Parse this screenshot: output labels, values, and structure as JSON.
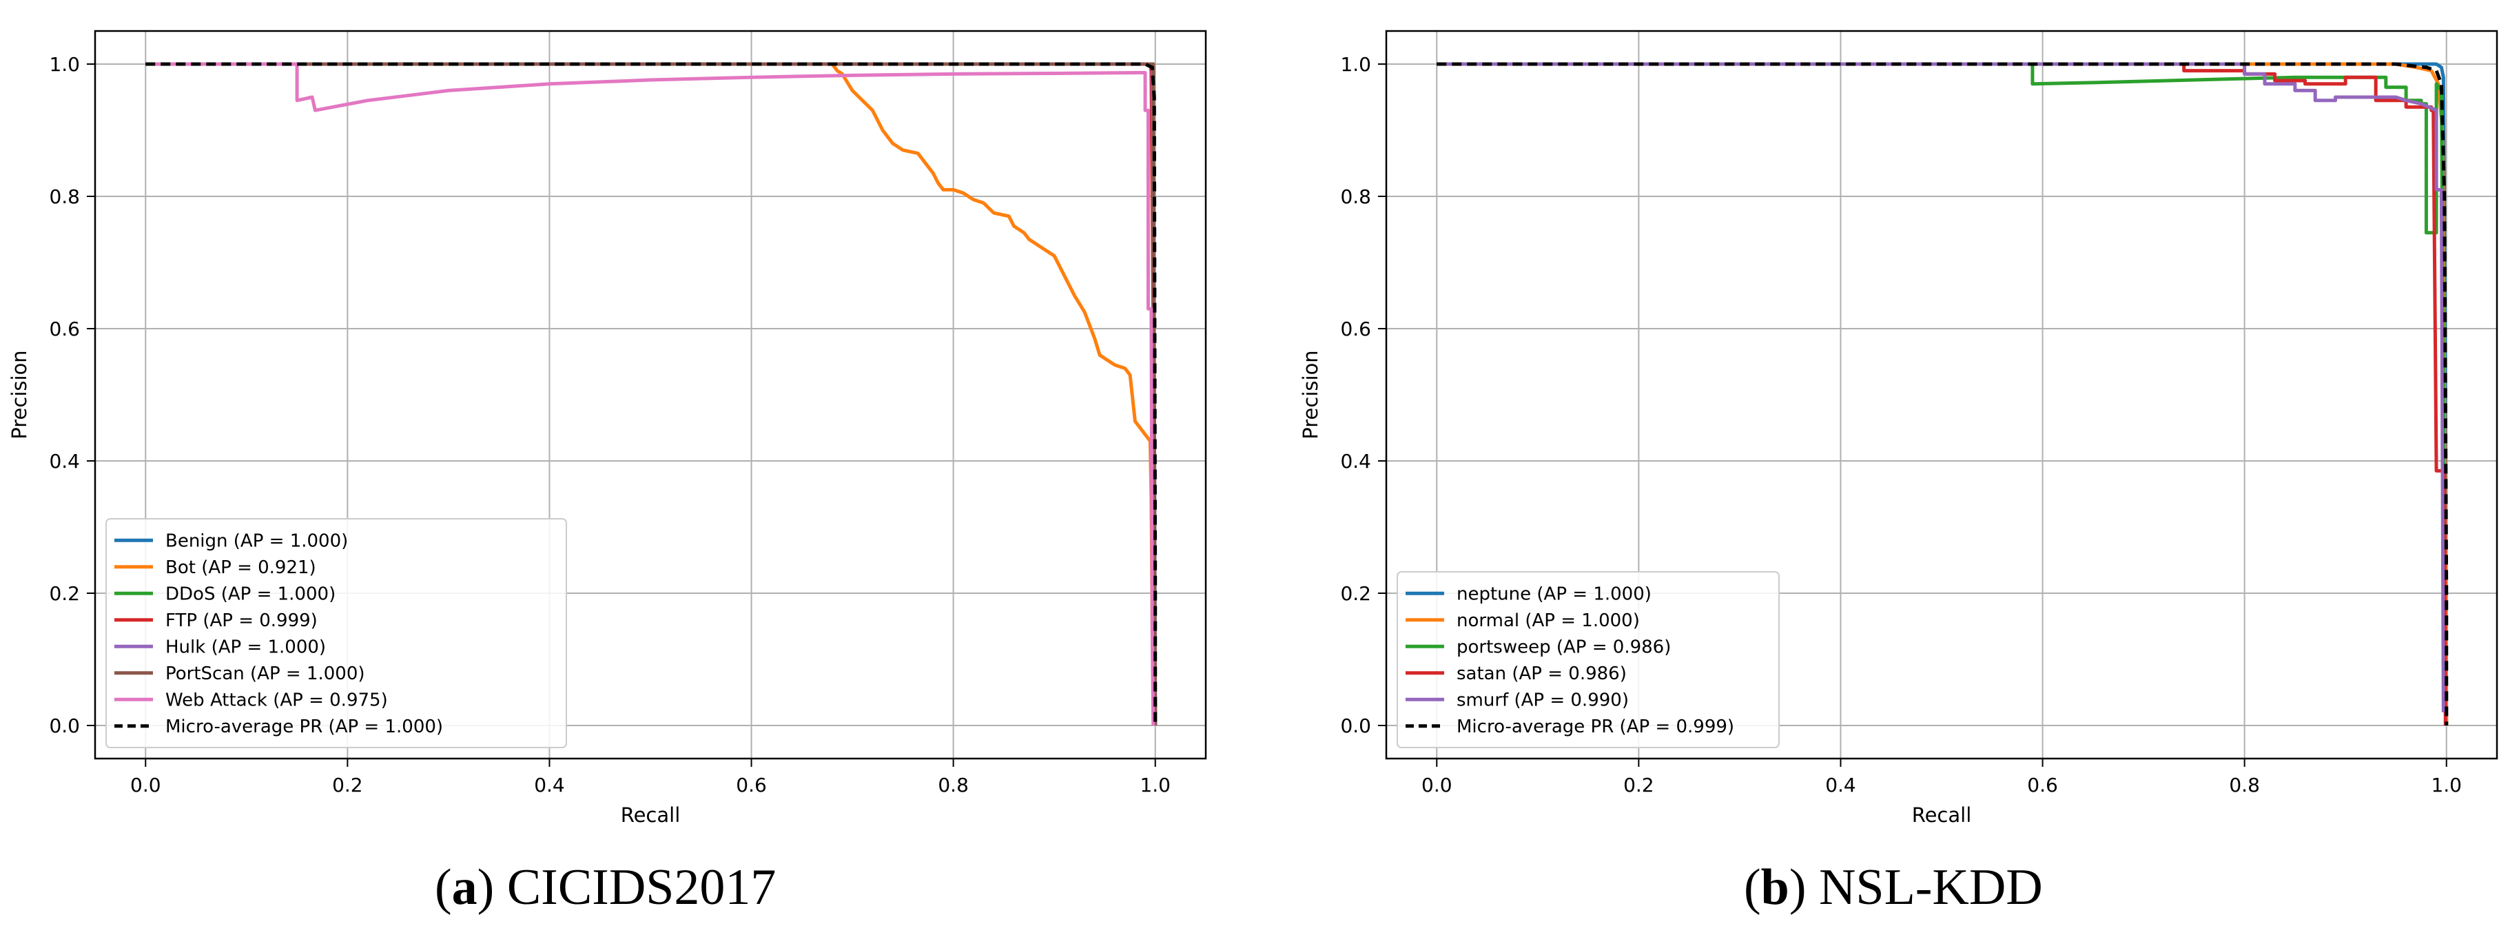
{
  "chart_data": [
    {
      "type": "line",
      "caption": {
        "letter": "a",
        "text": "CICIDS2017"
      },
      "xlabel": "Recall",
      "ylabel": "Precision",
      "xlim": [
        -0.05,
        1.05
      ],
      "ylim": [
        -0.05,
        1.05
      ],
      "xticks": [
        "0.0",
        "0.2",
        "0.4",
        "0.6",
        "0.8",
        "1.0"
      ],
      "yticks": [
        "0.0",
        "0.2",
        "0.4",
        "0.6",
        "0.8",
        "1.0"
      ],
      "grid": true,
      "legend_position": "lower-left",
      "series": [
        {
          "name": "Benign (AP = 1.000)",
          "color": "#1f77b4",
          "dash": false,
          "points": [
            [
              0,
              1
            ],
            [
              0.997,
              1
            ],
            [
              0.998,
              0.99
            ],
            [
              0.999,
              0.5
            ],
            [
              1,
              0
            ]
          ]
        },
        {
          "name": "Bot (AP = 0.921)",
          "color": "#ff7f0e",
          "dash": false,
          "points": [
            [
              0,
              1
            ],
            [
              0.68,
              1
            ],
            [
              0.685,
              0.99
            ],
            [
              0.69,
              0.985
            ],
            [
              0.7,
              0.96
            ],
            [
              0.71,
              0.945
            ],
            [
              0.72,
              0.93
            ],
            [
              0.73,
              0.9
            ],
            [
              0.74,
              0.88
            ],
            [
              0.75,
              0.87
            ],
            [
              0.765,
              0.865
            ],
            [
              0.775,
              0.845
            ],
            [
              0.78,
              0.835
            ],
            [
              0.785,
              0.82
            ],
            [
              0.79,
              0.81
            ],
            [
              0.8,
              0.81
            ],
            [
              0.81,
              0.805
            ],
            [
              0.82,
              0.795
            ],
            [
              0.83,
              0.79
            ],
            [
              0.84,
              0.775
            ],
            [
              0.855,
              0.77
            ],
            [
              0.86,
              0.755
            ],
            [
              0.87,
              0.745
            ],
            [
              0.875,
              0.735
            ],
            [
              0.88,
              0.73
            ],
            [
              0.89,
              0.72
            ],
            [
              0.9,
              0.71
            ],
            [
              0.91,
              0.68
            ],
            [
              0.92,
              0.65
            ],
            [
              0.93,
              0.625
            ],
            [
              0.94,
              0.585
            ],
            [
              0.945,
              0.56
            ],
            [
              0.95,
              0.555
            ],
            [
              0.96,
              0.545
            ],
            [
              0.97,
              0.54
            ],
            [
              0.975,
              0.53
            ],
            [
              0.98,
              0.46
            ],
            [
              0.99,
              0.44
            ],
            [
              0.995,
              0.43
            ],
            [
              0.996,
              0.35
            ],
            [
              0.997,
              0.15
            ],
            [
              0.998,
              0.04
            ]
          ]
        },
        {
          "name": "DDoS (AP = 1.000)",
          "color": "#2ca02c",
          "dash": false,
          "points": [
            [
              0,
              1
            ],
            [
              0.998,
              1
            ],
            [
              0.999,
              0.3
            ],
            [
              1,
              0
            ]
          ]
        },
        {
          "name": "FTP (AP = 0.999)",
          "color": "#d62728",
          "dash": false,
          "points": [
            [
              0,
              1
            ],
            [
              0.995,
              1
            ],
            [
              0.996,
              0.99
            ],
            [
              0.998,
              0.6
            ],
            [
              1,
              0
            ]
          ]
        },
        {
          "name": "Hulk (AP = 1.000)",
          "color": "#9467bd",
          "dash": false,
          "points": [
            [
              0,
              1
            ],
            [
              0.997,
              1
            ],
            [
              0.999,
              0.5
            ],
            [
              1,
              0
            ]
          ]
        },
        {
          "name": "PortScan (AP = 1.000)",
          "color": "#8c564b",
          "dash": false,
          "points": [
            [
              0,
              1
            ],
            [
              0.998,
              1
            ],
            [
              0.999,
              0.4
            ],
            [
              1,
              0
            ]
          ]
        },
        {
          "name": "Web Attack (AP = 0.975)",
          "color": "#e377c2",
          "dash": false,
          "points": [
            [
              0,
              1
            ],
            [
              0.15,
              1
            ],
            [
              0.15,
              0.945
            ],
            [
              0.165,
              0.95
            ],
            [
              0.168,
              0.93
            ],
            [
              0.22,
              0.945
            ],
            [
              0.3,
              0.96
            ],
            [
              0.4,
              0.97
            ],
            [
              0.5,
              0.976
            ],
            [
              0.6,
              0.98
            ],
            [
              0.7,
              0.983
            ],
            [
              0.8,
              0.985
            ],
            [
              0.9,
              0.986
            ],
            [
              0.99,
              0.987
            ],
            [
              0.99,
              0.93
            ],
            [
              0.993,
              0.93
            ],
            [
              0.993,
              0.63
            ],
            [
              0.996,
              0.63
            ],
            [
              0.997,
              0.14
            ],
            [
              0.998,
              0.0
            ]
          ]
        },
        {
          "name": "Micro-average PR (AP = 1.000)",
          "color": "#000000",
          "dash": true,
          "points": [
            [
              0,
              1
            ],
            [
              0.99,
              1
            ],
            [
              0.997,
              0.995
            ],
            [
              0.999,
              0.95
            ],
            [
              1,
              0.2
            ],
            [
              1,
              0
            ]
          ]
        }
      ]
    },
    {
      "type": "line",
      "caption": {
        "letter": "b",
        "text": "NSL-KDD"
      },
      "xlabel": "Recall",
      "ylabel": "Precision",
      "xlim": [
        -0.05,
        1.05
      ],
      "ylim": [
        -0.05,
        1.05
      ],
      "xticks": [
        "0.0",
        "0.2",
        "0.4",
        "0.6",
        "0.8",
        "1.0"
      ],
      "yticks": [
        "0.0",
        "0.2",
        "0.4",
        "0.6",
        "0.8",
        "1.0"
      ],
      "grid": true,
      "legend_position": "lower-left",
      "series": [
        {
          "name": "neptune (AP = 1.000)",
          "color": "#1f77b4",
          "dash": false,
          "points": [
            [
              0,
              1
            ],
            [
              0.99,
              1
            ],
            [
              0.995,
              0.995
            ],
            [
              0.997,
              0.98
            ],
            [
              0.999,
              0.5
            ],
            [
              1,
              0
            ]
          ]
        },
        {
          "name": "normal (AP = 1.000)",
          "color": "#ff7f0e",
          "dash": false,
          "points": [
            [
              0,
              1
            ],
            [
              0.95,
              1
            ],
            [
              0.97,
              0.995
            ],
            [
              0.985,
              0.99
            ],
            [
              0.992,
              0.97
            ],
            [
              0.996,
              0.9
            ],
            [
              0.998,
              0.5
            ],
            [
              1,
              0
            ]
          ]
        },
        {
          "name": "portsweep (AP = 0.986)",
          "color": "#2ca02c",
          "dash": false,
          "points": [
            [
              0,
              1
            ],
            [
              0.59,
              1
            ],
            [
              0.59,
              0.97
            ],
            [
              0.65,
              0.972
            ],
            [
              0.75,
              0.976
            ],
            [
              0.85,
              0.98
            ],
            [
              0.94,
              0.98
            ],
            [
              0.94,
              0.965
            ],
            [
              0.96,
              0.965
            ],
            [
              0.96,
              0.945
            ],
            [
              0.975,
              0.945
            ],
            [
              0.975,
              0.94
            ],
            [
              0.98,
              0.94
            ],
            [
              0.98,
              0.745
            ],
            [
              0.99,
              0.745
            ],
            [
              0.99,
              0.97
            ],
            [
              0.995,
              0.96
            ],
            [
              0.997,
              0.5
            ],
            [
              0.998,
              0.02
            ]
          ]
        },
        {
          "name": "satan (AP = 0.986)",
          "color": "#d62728",
          "dash": false,
          "points": [
            [
              0,
              1
            ],
            [
              0.74,
              1
            ],
            [
              0.74,
              0.99
            ],
            [
              0.8,
              0.99
            ],
            [
              0.8,
              0.985
            ],
            [
              0.83,
              0.985
            ],
            [
              0.83,
              0.975
            ],
            [
              0.86,
              0.975
            ],
            [
              0.86,
              0.97
            ],
            [
              0.9,
              0.97
            ],
            [
              0.9,
              0.98
            ],
            [
              0.93,
              0.98
            ],
            [
              0.93,
              0.945
            ],
            [
              0.96,
              0.945
            ],
            [
              0.96,
              0.935
            ],
            [
              0.985,
              0.935
            ],
            [
              0.985,
              0.93
            ],
            [
              0.987,
              0.93
            ],
            [
              0.99,
              0.385
            ],
            [
              0.998,
              0.385
            ],
            [
              0.999,
              0.0
            ]
          ]
        },
        {
          "name": "smurf (AP = 0.990)",
          "color": "#9467bd",
          "dash": false,
          "points": [
            [
              0,
              1
            ],
            [
              0.8,
              1
            ],
            [
              0.8,
              0.985
            ],
            [
              0.82,
              0.985
            ],
            [
              0.82,
              0.97
            ],
            [
              0.85,
              0.97
            ],
            [
              0.85,
              0.96
            ],
            [
              0.87,
              0.96
            ],
            [
              0.87,
              0.945
            ],
            [
              0.89,
              0.945
            ],
            [
              0.89,
              0.95
            ],
            [
              0.92,
              0.95
            ],
            [
              0.95,
              0.95
            ],
            [
              0.96,
              0.945
            ],
            [
              0.975,
              0.94
            ],
            [
              0.99,
              0.93
            ],
            [
              0.99,
              0.81
            ],
            [
              0.995,
              0.81
            ],
            [
              0.997,
              0.02
            ]
          ]
        },
        {
          "name": "Micro-average PR (AP = 0.999)",
          "color": "#000000",
          "dash": true,
          "points": [
            [
              0,
              1
            ],
            [
              0.95,
              1
            ],
            [
              0.98,
              0.995
            ],
            [
              0.99,
              0.99
            ],
            [
              0.995,
              0.97
            ],
            [
              0.998,
              0.8
            ],
            [
              1,
              0.2
            ],
            [
              1,
              0
            ]
          ]
        }
      ]
    }
  ]
}
